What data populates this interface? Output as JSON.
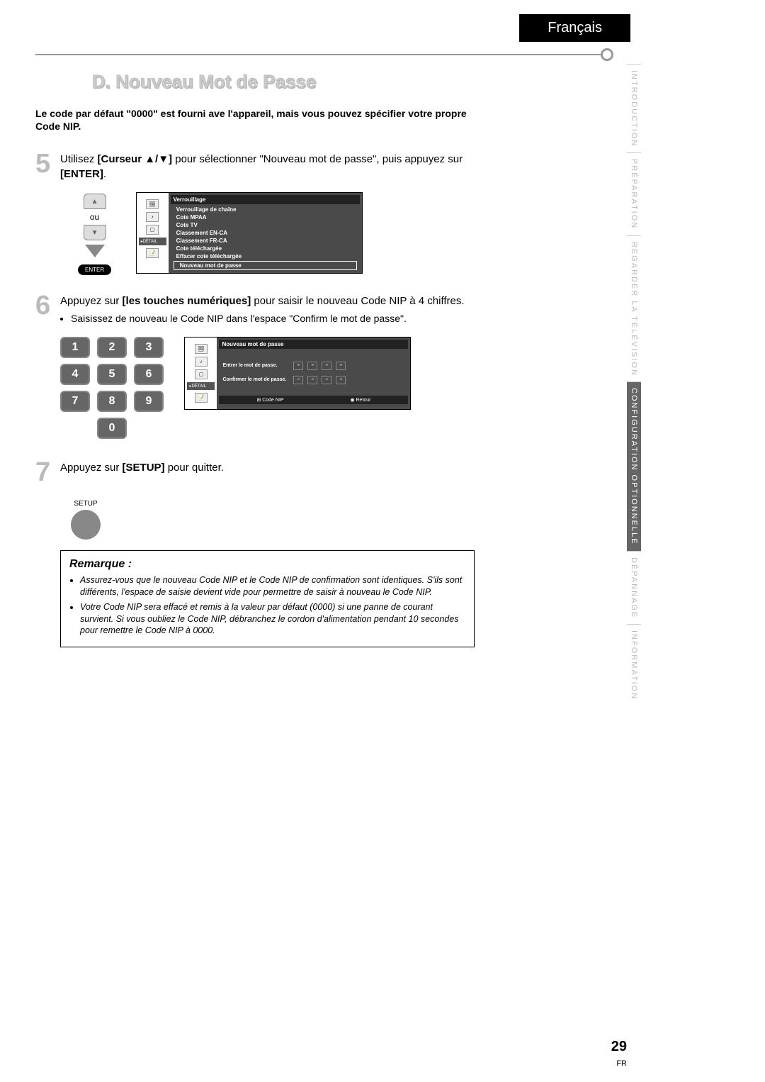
{
  "language_tab": "Français",
  "section_title": "D. Nouveau Mot de Passe",
  "intro_text": "Le code par défaut \"0000\" est fourni ave l'appareil, mais vous pouvez spécifier votre propre Code NIP.",
  "step5": {
    "num": "5",
    "text_pre": "Utilisez ",
    "bold1": "[Curseur ▲/▼]",
    "text_mid": " pour sélectionner \"Nouveau mot de passe\", puis appuyez sur ",
    "bold2": "[ENTER]",
    "text_post": "."
  },
  "remote": {
    "ou": "ou",
    "enter": "ENTER",
    "up": "▲",
    "down": "▼"
  },
  "osd1": {
    "title": "Verrouillage",
    "items": [
      "Verrouillage de chaîne",
      "Cote MPAA",
      "Cote TV",
      "Classement EN-CA",
      "Classement FR-CA",
      "Cote téléchargée",
      "Effacer cote téléchargée",
      "Nouveau mot de passe"
    ],
    "detail": "DÉTAIL",
    "icons": [
      "🖼",
      "♪",
      "▢",
      "📝"
    ]
  },
  "step6": {
    "num": "6",
    "text_pre": "Appuyez sur ",
    "bold1": "[les touches numériques]",
    "text_post": " pour saisir le nouveau Code NIP à 4 chiffres.",
    "bullet": "Saisissez de nouveau le Code NIP dans l'espace \"Confirm le mot de passe\"."
  },
  "keypad": [
    "1",
    "2",
    "3",
    "4",
    "5",
    "6",
    "7",
    "8",
    "9",
    "0"
  ],
  "osd2": {
    "title": "Nouveau mot de passe",
    "field1": "Entrer le mot de passe.",
    "field2": "Confirmer le mot de passe.",
    "footer1": "Code NIP",
    "footer2": "Retour",
    "dash": "–"
  },
  "step7": {
    "num": "7",
    "text_pre": "Appuyez sur ",
    "bold1": "[SETUP]",
    "text_post": " pour quitter."
  },
  "setup_label": "SETUP",
  "remarque": {
    "title": "Remarque :",
    "items": [
      "Assurez-vous que le nouveau Code NIP et le Code NIP de confirmation sont identiques. S'ils sont différents, l'espace de saisie devient vide pour permettre de saisir à nouveau le Code NIP.",
      "Votre Code NIP sera effacé et remis à la valeur par défaut (0000) si une panne de courant survient. Si vous oubliez le Code NIP, débranchez le cordon d'alimentation pendant 10 secondes pour remettre le Code NIP à 0000."
    ]
  },
  "side_tabs": [
    {
      "label": "INTRODUCTION",
      "active": false
    },
    {
      "label": "PRÉPARATION",
      "active": false
    },
    {
      "label": "REGARDER LA\nTÉLÉVISION",
      "active": false
    },
    {
      "label": "CONFIGURATION\nOPTIONNELLE",
      "active": true
    },
    {
      "label": "DÉPANNAGE",
      "active": false
    },
    {
      "label": "INFORMATION",
      "active": false
    }
  ],
  "page_number": "29",
  "page_lang": "FR",
  "colors": {
    "tab_bg": "#000000",
    "tab_fg": "#ffffff",
    "step_num": "#bbbbbb",
    "osd_bg": "#4a4a4a",
    "key_bg": "#666666"
  }
}
